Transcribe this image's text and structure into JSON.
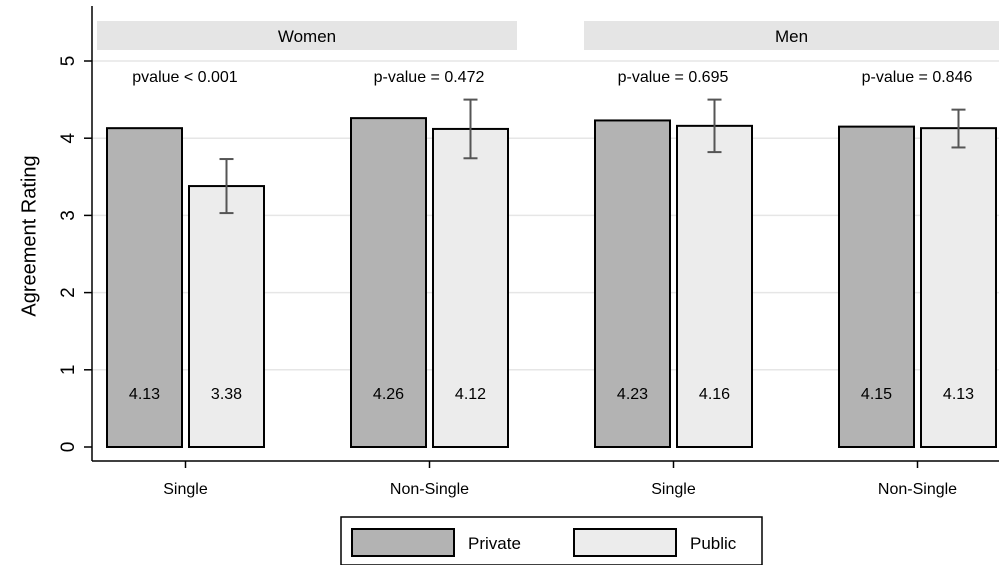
{
  "chart_data": {
    "type": "bar",
    "ylabel": "Agreement Rating",
    "ylim": [
      0,
      5
    ],
    "yticks": [
      "0",
      "1",
      "2",
      "3",
      "4",
      "5"
    ],
    "grid": true,
    "legend_position": "bottom-center",
    "series": [
      {
        "name": "Private",
        "color": "#b3b3b3"
      },
      {
        "name": "Public",
        "color": "#ececec"
      }
    ],
    "panels": [
      {
        "label": "Women",
        "groups": [
          {
            "category": "Single",
            "pvalue_label": "pvalue < 0.001",
            "private": 4.13,
            "public": 3.38,
            "private_label": "4.13",
            "public_label": "3.38",
            "public_ci": [
              3.03,
              3.73
            ]
          },
          {
            "category": "Non-Single",
            "pvalue_label": "p-value = 0.472",
            "private": 4.26,
            "public": 4.12,
            "private_label": "4.26",
            "public_label": "4.12",
            "public_ci": [
              3.74,
              4.5
            ]
          }
        ]
      },
      {
        "label": "Men",
        "groups": [
          {
            "category": "Single",
            "pvalue_label": "p-value = 0.695",
            "private": 4.23,
            "public": 4.16,
            "private_label": "4.23",
            "public_label": "4.16",
            "public_ci": [
              3.82,
              4.5
            ]
          },
          {
            "category": "Non-Single",
            "pvalue_label": "p-value = 0.846",
            "private": 4.15,
            "public": 4.13,
            "private_label": "4.15",
            "public_label": "4.13",
            "public_ci": [
              3.88,
              4.37
            ]
          }
        ]
      }
    ]
  }
}
